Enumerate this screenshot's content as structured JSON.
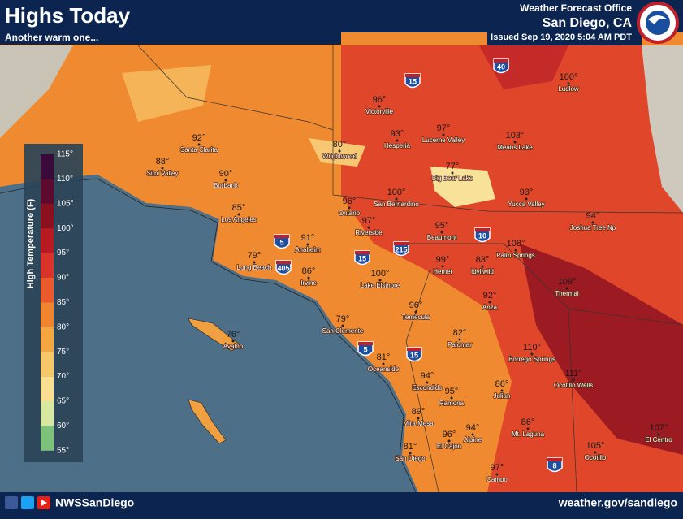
{
  "header": {
    "title": "Highs Today",
    "subtitle": "Another warm one...",
    "office": "Weather Forecast Office",
    "location": "San Diego, CA",
    "issued": "Issued Sep 19, 2020 5:04 AM PDT"
  },
  "legend": {
    "title": "High Temperature (F)",
    "items": [
      {
        "label": "115°",
        "color": "#3a0a3a"
      },
      {
        "label": "110°",
        "color": "#5c0a2e"
      },
      {
        "label": "105°",
        "color": "#8a1020"
      },
      {
        "label": "100°",
        "color": "#b81a22"
      },
      {
        "label": "95°",
        "color": "#d8342a"
      },
      {
        "label": "90°",
        "color": "#ea5a2c"
      },
      {
        "label": "85°",
        "color": "#f0842f"
      },
      {
        "label": "80°",
        "color": "#f4a640"
      },
      {
        "label": "75°",
        "color": "#f7c86a"
      },
      {
        "label": "70°",
        "color": "#f9e090"
      },
      {
        "label": "65°",
        "color": "#d8e8a0"
      },
      {
        "label": "60°",
        "color": "#7cc27a"
      },
      {
        "label": "55°",
        "color": "#2c9a4a"
      }
    ]
  },
  "cities": [
    {
      "temp": "96°",
      "name": "Victorville"
    },
    {
      "temp": "93°",
      "name": "Hesperia"
    },
    {
      "temp": "97°",
      "name": "Lucerne Valley"
    },
    {
      "temp": "103°",
      "name": "Means Lake"
    },
    {
      "temp": "100°",
      "name": "Ludlow"
    },
    {
      "temp": "92°",
      "name": "Santa Clarita"
    },
    {
      "temp": "88°",
      "name": "Simi Valley"
    },
    {
      "temp": "80°",
      "name": "Wrightwood"
    },
    {
      "temp": "77°",
      "name": "Big Bear Lake"
    },
    {
      "temp": "90°",
      "name": "Burbank"
    },
    {
      "temp": "96°",
      "name": "Ontario"
    },
    {
      "temp": "100°",
      "name": "San Bernardino"
    },
    {
      "temp": "93°",
      "name": "Yucca Valley"
    },
    {
      "temp": "85°",
      "name": "Los Angeles"
    },
    {
      "temp": "97°",
      "name": "Riverside"
    },
    {
      "temp": "95°",
      "name": "Beaumont"
    },
    {
      "temp": "94°",
      "name": "Joshua Tree Np"
    },
    {
      "temp": "91°",
      "name": "Anaheim"
    },
    {
      "temp": "108°",
      "name": "Palm Springs"
    },
    {
      "temp": "79°",
      "name": "Long Beach"
    },
    {
      "temp": "86°",
      "name": "Irvine"
    },
    {
      "temp": "99°",
      "name": "Hemet"
    },
    {
      "temp": "83°",
      "name": "Idyllwild"
    },
    {
      "temp": "100°",
      "name": "Lake Elsinore"
    },
    {
      "temp": "109°",
      "name": "Thermal"
    },
    {
      "temp": "92°",
      "name": "Anza"
    },
    {
      "temp": "96°",
      "name": "Temecula"
    },
    {
      "temp": "79°",
      "name": "San Clemente"
    },
    {
      "temp": "76°",
      "name": "Avalon"
    },
    {
      "temp": "82°",
      "name": "Palomar"
    },
    {
      "temp": "110°",
      "name": "Borrego Springs"
    },
    {
      "temp": "81°",
      "name": "Oceanside"
    },
    {
      "temp": "111°",
      "name": "Ocotillo Wells"
    },
    {
      "temp": "94°",
      "name": "Escondido"
    },
    {
      "temp": "86°",
      "name": "Julian"
    },
    {
      "temp": "95°",
      "name": "Ramona"
    },
    {
      "temp": "89°",
      "name": "Mira Mesa"
    },
    {
      "temp": "86°",
      "name": "Mt. Laguna"
    },
    {
      "temp": "94°",
      "name": "Alpine"
    },
    {
      "temp": "96°",
      "name": "El Cajon"
    },
    {
      "temp": "107°",
      "name": "El Centro"
    },
    {
      "temp": "81°",
      "name": "San Diego"
    },
    {
      "temp": "105°",
      "name": "Ocotillo"
    },
    {
      "temp": "97°",
      "name": "Campo"
    }
  ],
  "highways": [
    "15",
    "40",
    "5",
    "405",
    "15",
    "215",
    "10",
    "5",
    "15",
    "8"
  ],
  "footer": {
    "handle": "NWSSanDiego",
    "url": "weather.gov/sandiego"
  }
}
